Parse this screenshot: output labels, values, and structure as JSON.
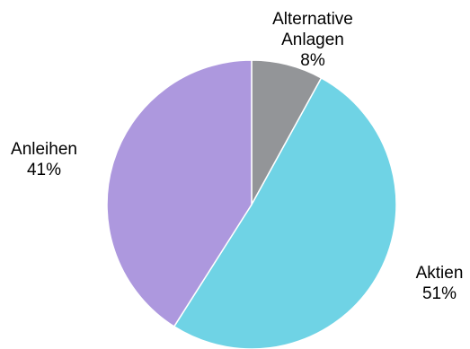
{
  "chart_data": {
    "type": "pie",
    "title": "",
    "legend": "none",
    "slices": [
      {
        "name": "Alternative Anlagen",
        "label_lines": [
          "Alternative",
          "Anlagen",
          "8%"
        ],
        "value": 8,
        "color": "#939598"
      },
      {
        "name": "Aktien",
        "label_lines": [
          "Aktien",
          "51%"
        ],
        "value": 51,
        "color": "#6fd3e5"
      },
      {
        "name": "Anleihen",
        "label_lines": [
          "Anleihen",
          "41%"
        ],
        "value": 41,
        "color": "#ad98de"
      }
    ]
  }
}
